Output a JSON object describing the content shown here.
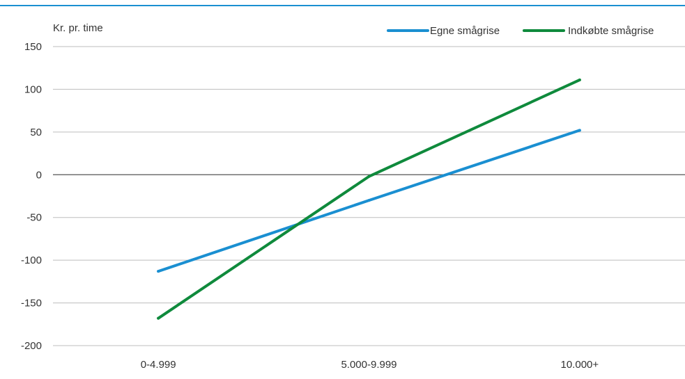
{
  "chart_data": {
    "type": "line",
    "title": "",
    "xlabel": "",
    "ylabel": "Kr. pr. time",
    "categories": [
      "0-4.999",
      "5.000-9.999",
      "10.000+"
    ],
    "ylim": [
      -200,
      150
    ],
    "yticks": [
      150,
      100,
      50,
      0,
      -50,
      -100,
      -150,
      -200
    ],
    "grid": true,
    "legend_position": "top-right",
    "series": [
      {
        "name": "Egne smågrise",
        "color": "#1a8fd1",
        "values": [
          -113,
          -30,
          52
        ]
      },
      {
        "name": "Indkøbte smågrise",
        "color": "#0f8a3c",
        "values": [
          -168,
          -2,
          111
        ]
      }
    ]
  },
  "colors": {
    "top_rule": "#1a8fd1",
    "gridline": "#bdbdbd",
    "zero_line": "#707070"
  }
}
